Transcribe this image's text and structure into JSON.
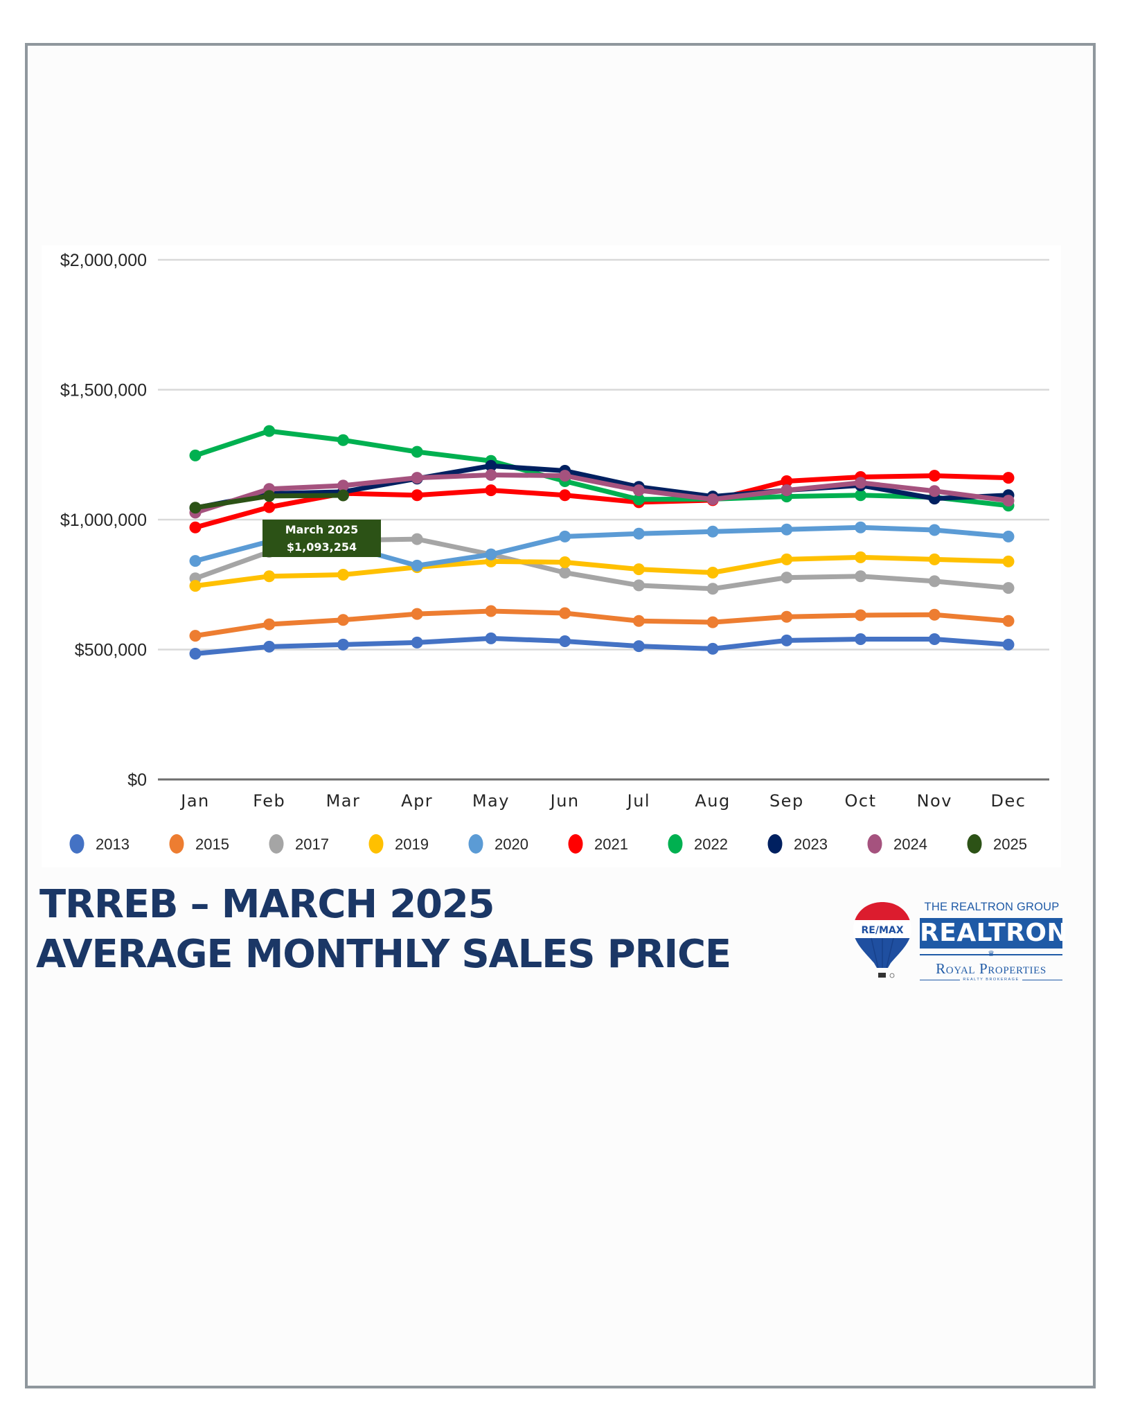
{
  "header": {
    "title_line1": "TRREB – MARCH 2025",
    "title_line2": "AVERAGE MONTHLY SALES PRICE"
  },
  "logo": {
    "balloon_text": "RE/MAX",
    "group_text": "THE REALTRON GROUP",
    "main_text": "REALTRON",
    "sub_text": "Royal Properties",
    "brokerage_text": "REALTY BROKERAGE",
    "icon": "remax-balloon-icon"
  },
  "tooltip": {
    "label": "March 2025",
    "value": "$1,093,254"
  },
  "colors": {
    "title": "#1b3766",
    "tooltip_bg": "#2c5216",
    "frame_border": "#8f979d",
    "brand_blue": "#1f5aa6"
  },
  "chart_data": {
    "type": "line",
    "title": "TRREB – March 2025 Average Monthly Sales Price",
    "xlabel": "",
    "ylabel": "",
    "ylim": [
      0,
      2000000
    ],
    "yticks": [
      0,
      500000,
      1000000,
      1500000,
      2000000
    ],
    "ytick_labels": [
      "$0",
      "$500,000",
      "$1,000,000",
      "$1,500,000",
      "$2,000,000"
    ],
    "grid": true,
    "legend_position": "bottom",
    "categories": [
      "Jan",
      "Feb",
      "Mar",
      "Apr",
      "May",
      "Jun",
      "Jul",
      "Aug",
      "Sep",
      "Oct",
      "Nov",
      "Dec"
    ],
    "series": [
      {
        "name": "2013",
        "color": "#4472c4",
        "values": [
          484000,
          511000,
          519000,
          527000,
          543000,
          532000,
          513000,
          503000,
          535000,
          540000,
          540000,
          519000
        ]
      },
      {
        "name": "2015",
        "color": "#ed7d31",
        "values": [
          553000,
          597000,
          614000,
          637000,
          648000,
          640000,
          610000,
          605000,
          626000,
          632000,
          634000,
          610000
        ]
      },
      {
        "name": "2017",
        "color": "#a5a5a5",
        "values": [
          774000,
          876000,
          920000,
          925000,
          866000,
          796000,
          747000,
          734000,
          777000,
          782000,
          763000,
          737000
        ]
      },
      {
        "name": "2019",
        "color": "#ffc000",
        "values": [
          745000,
          782000,
          788000,
          817000,
          839000,
          836000,
          809000,
          796000,
          847000,
          855000,
          847000,
          839000
        ]
      },
      {
        "name": "2020",
        "color": "#5b9bd5",
        "values": [
          841000,
          916000,
          902000,
          823000,
          866000,
          935000,
          946000,
          954000,
          962000,
          970000,
          960000,
          935000
        ]
      },
      {
        "name": "2021",
        "color": "#ff0000",
        "values": [
          970000,
          1048000,
          1101000,
          1094000,
          1113000,
          1094000,
          1067000,
          1075000,
          1148000,
          1164000,
          1169000,
          1161000
        ]
      },
      {
        "name": "2022",
        "color": "#00b050",
        "values": [
          1247000,
          1341000,
          1306000,
          1261000,
          1226000,
          1148000,
          1078000,
          1079000,
          1089000,
          1094000,
          1086000,
          1054000
        ]
      },
      {
        "name": "2023",
        "color": "#002060",
        "values": [
          1045000,
          1100000,
          1107000,
          1158000,
          1207000,
          1188000,
          1126000,
          1089000,
          1113000,
          1132000,
          1081000,
          1094000
        ]
      },
      {
        "name": "2024",
        "color": "#a5527e",
        "values": [
          1027000,
          1118000,
          1131000,
          1161000,
          1172000,
          1169000,
          1113000,
          1078000,
          1113000,
          1142000,
          1110000,
          1073000
        ]
      },
      {
        "name": "2025",
        "color": "#2c5216",
        "values": [
          1046000,
          1091000,
          1093254,
          null,
          null,
          null,
          null,
          null,
          null,
          null,
          null,
          null
        ]
      }
    ],
    "annotations": [
      {
        "text": "March 2025 $1,093,254",
        "category": "Mar",
        "series": "2025"
      }
    ]
  }
}
